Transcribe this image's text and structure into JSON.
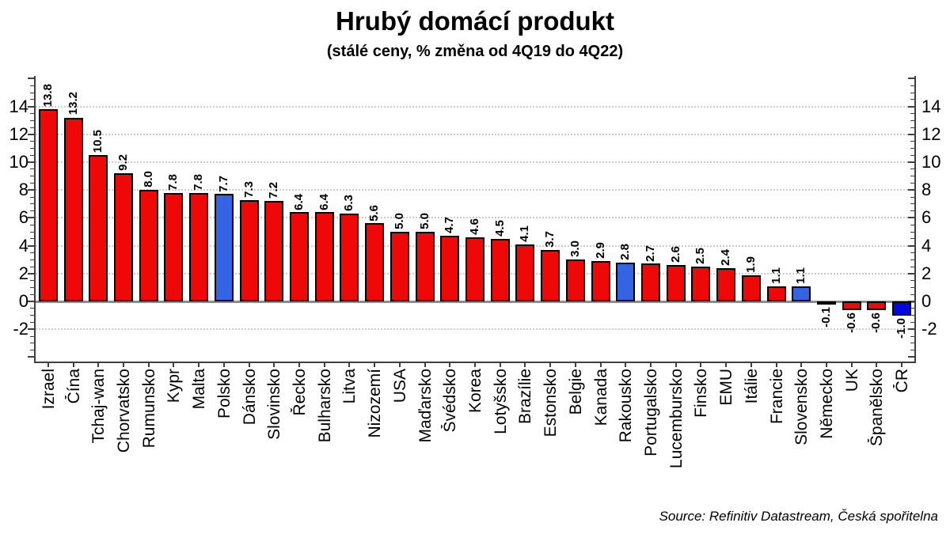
{
  "title": "Hrubý domácí produkt",
  "subtitle": "(stálé ceny, % změna od 4Q19 do 4Q22)",
  "source": "Source: Refinitiv Datastream, Česká spořitelna",
  "colors": {
    "bar_red": "#ee0808",
    "bar_blue_neighbor": "#3463e4",
    "bar_blue_self": "#0008dd",
    "bar_border": "#000000",
    "zero_line": "#8c8c8c",
    "gridline": "#cccccc",
    "axis": "#3f3f3f",
    "text": "#000000",
    "background": "#ffffff"
  },
  "chart_data": {
    "type": "bar",
    "title": "Hrubý domácí produkt",
    "subtitle": "(stálé ceny, % změna od 4Q19 do 4Q22)",
    "categories": [
      "Izrael",
      "Čína",
      "Tchaj-wan",
      "Chorvatsko",
      "Rumunsko",
      "Kypr",
      "Malta",
      "Polsko",
      "Dánsko",
      "Slovinsko",
      "Řecko",
      "Bulharsko",
      "Litva",
      "Nizozemí",
      "USA",
      "Maďarsko",
      "Švédsko",
      "Korea",
      "Lotyšsko",
      "Brazílie",
      "Estonsko",
      "Belgie",
      "Kanada",
      "Rakousko",
      "Portugalsko",
      "Lucembursko",
      "Finsko",
      "EMU",
      "Itálie",
      "Francie",
      "Slovensko",
      "Německo",
      "UK",
      "Španělsko",
      "ČR"
    ],
    "values": [
      13.8,
      13.2,
      10.5,
      9.2,
      8.0,
      7.8,
      7.8,
      7.7,
      7.3,
      7.2,
      6.4,
      6.4,
      6.3,
      5.6,
      5.0,
      5.0,
      4.7,
      4.6,
      4.5,
      4.1,
      3.7,
      3.0,
      2.9,
      2.8,
      2.7,
      2.6,
      2.5,
      2.4,
      1.9,
      1.1,
      1.1,
      -0.1,
      -0.6,
      -0.6,
      -1.0
    ],
    "highlighted_neighbors": [
      "Polsko",
      "Rakousko",
      "Slovensko",
      "Německo"
    ],
    "highlighted_self": [
      "ČR"
    ],
    "value_label_format": "one decimal, rotated 90°, bottom-to-top",
    "category_label_rotation": "90° bottom-to-top",
    "ylim": [
      -4.1,
      16.4
    ],
    "yticks": [
      -2,
      0,
      2,
      4,
      6,
      8,
      10,
      12,
      14
    ],
    "minor_tick_step": 0.5,
    "y_axis_sides": "both left and right",
    "grid": "horizontal dotted lines at major ticks, solid gray line at zero",
    "legend": "none",
    "xlabel": "",
    "ylabel": ""
  }
}
